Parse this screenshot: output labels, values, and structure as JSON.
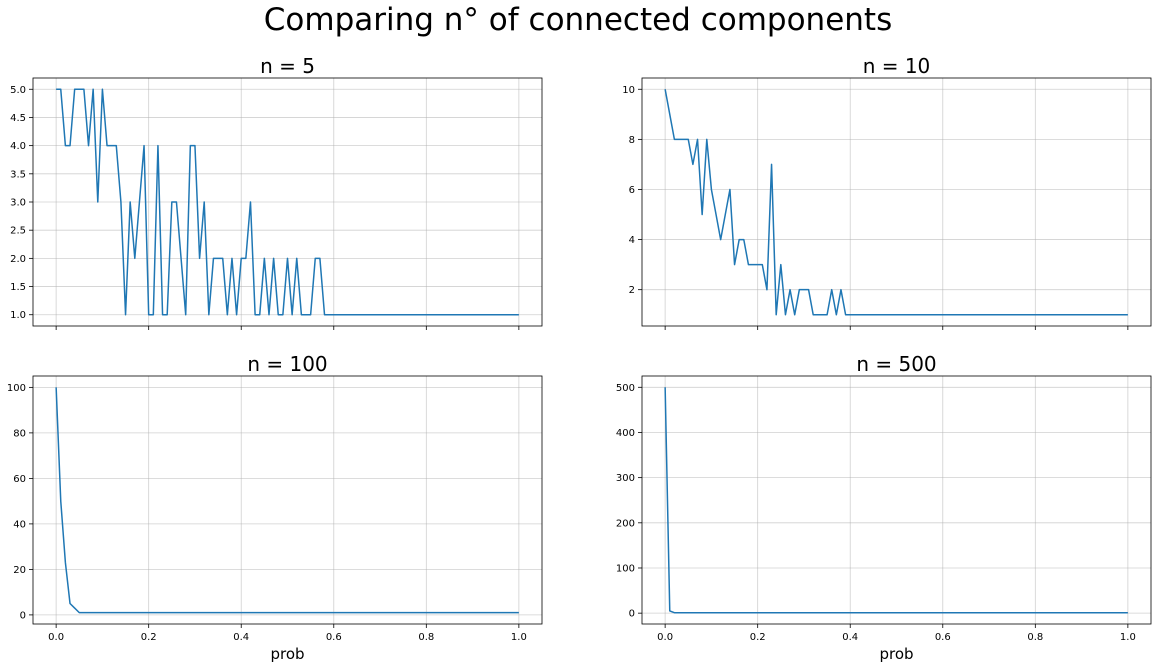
{
  "figure": {
    "title": "Comparing n° of connected components"
  },
  "colors": {
    "line": "#1f77b4"
  },
  "chart_data": [
    {
      "type": "line",
      "title": "n = 5",
      "xlabel": "",
      "ylabel": "",
      "grid": true,
      "xlim": [
        -0.05,
        1.05
      ],
      "ylim": [
        0.8,
        5.2
      ],
      "xticks": [
        0,
        0.2,
        0.4,
        0.6,
        0.8,
        1.0
      ],
      "xtick_labels": [],
      "yticks": [
        1.0,
        1.5,
        2.0,
        2.5,
        3.0,
        3.5,
        4.0,
        4.5,
        5.0
      ],
      "ytick_labels": [
        "1.0",
        "1.5",
        "2.0",
        "2.5",
        "3.0",
        "3.5",
        "4.0",
        "4.5",
        "5.0"
      ],
      "series": [
        {
          "x": [
            0.0,
            0.01,
            0.02,
            0.03,
            0.04,
            0.05,
            0.06,
            0.07,
            0.08,
            0.09,
            0.1,
            0.11,
            0.12,
            0.13,
            0.14,
            0.15,
            0.16,
            0.17,
            0.18,
            0.19,
            0.2,
            0.21,
            0.22,
            0.23,
            0.24,
            0.25,
            0.26,
            0.27,
            0.28,
            0.29,
            0.3,
            0.31,
            0.32,
            0.33,
            0.34,
            0.35,
            0.36,
            0.37,
            0.38,
            0.39,
            0.4,
            0.41,
            0.42,
            0.43,
            0.44,
            0.45,
            0.46,
            0.47,
            0.48,
            0.49,
            0.5,
            0.51,
            0.52,
            0.53,
            0.54,
            0.55,
            0.56,
            0.57,
            0.58,
            1.0
          ],
          "y": [
            5,
            5,
            4,
            4,
            5,
            5,
            5,
            4,
            5,
            3,
            5,
            4,
            4,
            4,
            3,
            1,
            3,
            2,
            3,
            4,
            1,
            1,
            4,
            1,
            1,
            3,
            3,
            2,
            1,
            4,
            4,
            2,
            3,
            1,
            2,
            2,
            2,
            1,
            2,
            1,
            2,
            2,
            3,
            1,
            1,
            2,
            1,
            2,
            1,
            1,
            2,
            1,
            2,
            1,
            1,
            1,
            2,
            2,
            1,
            1
          ]
        }
      ]
    },
    {
      "type": "line",
      "title": "n = 10",
      "xlabel": "",
      "ylabel": "",
      "grid": true,
      "xlim": [
        -0.05,
        1.05
      ],
      "ylim": [
        0.55,
        10.45
      ],
      "xticks": [
        0,
        0.2,
        0.4,
        0.6,
        0.8,
        1.0
      ],
      "xtick_labels": [],
      "yticks": [
        2,
        4,
        6,
        8,
        10
      ],
      "ytick_labels": [
        "2",
        "4",
        "6",
        "8",
        "10"
      ],
      "series": [
        {
          "x": [
            0.0,
            0.01,
            0.02,
            0.03,
            0.04,
            0.05,
            0.06,
            0.07,
            0.08,
            0.09,
            0.1,
            0.11,
            0.12,
            0.13,
            0.14,
            0.15,
            0.16,
            0.17,
            0.18,
            0.19,
            0.2,
            0.21,
            0.22,
            0.23,
            0.24,
            0.25,
            0.26,
            0.27,
            0.28,
            0.29,
            0.3,
            0.31,
            0.32,
            0.33,
            0.34,
            0.35,
            0.36,
            0.37,
            0.38,
            0.39,
            0.4,
            1.0
          ],
          "y": [
            10,
            9,
            8,
            8,
            8,
            8,
            7,
            8,
            5,
            8,
            6,
            5,
            4,
            5,
            6,
            3,
            4,
            4,
            3,
            3,
            3,
            3,
            2,
            7,
            1,
            3,
            1,
            2,
            1,
            2,
            2,
            2,
            1,
            1,
            1,
            1,
            2,
            1,
            2,
            1,
            1,
            1
          ]
        }
      ]
    },
    {
      "type": "line",
      "title": "n = 100",
      "xlabel": "prob",
      "ylabel": "",
      "grid": true,
      "xlim": [
        -0.05,
        1.05
      ],
      "ylim": [
        -4,
        105
      ],
      "xticks": [
        0,
        0.2,
        0.4,
        0.6,
        0.8,
        1.0
      ],
      "xtick_labels": [
        "0.0",
        "0.2",
        "0.4",
        "0.6",
        "0.8",
        "1.0"
      ],
      "yticks": [
        0,
        20,
        40,
        60,
        80,
        100
      ],
      "ytick_labels": [
        "0",
        "20",
        "40",
        "60",
        "80",
        "100"
      ],
      "series": [
        {
          "x": [
            0.0,
            0.01,
            0.02,
            0.03,
            0.04,
            0.05,
            0.06,
            1.0
          ],
          "y": [
            100,
            50,
            23,
            5,
            3,
            1,
            1,
            1
          ]
        }
      ]
    },
    {
      "type": "line",
      "title": "n = 500",
      "xlabel": "prob",
      "ylabel": "",
      "grid": true,
      "xlim": [
        -0.05,
        1.05
      ],
      "ylim": [
        -24,
        525
      ],
      "xticks": [
        0,
        0.2,
        0.4,
        0.6,
        0.8,
        1.0
      ],
      "xtick_labels": [
        "0.0",
        "0.2",
        "0.4",
        "0.6",
        "0.8",
        "1.0"
      ],
      "yticks": [
        0,
        100,
        200,
        300,
        400,
        500
      ],
      "ytick_labels": [
        "0",
        "100",
        "200",
        "300",
        "400",
        "500"
      ],
      "series": [
        {
          "x": [
            0.0,
            0.01,
            0.02,
            0.03,
            1.0
          ],
          "y": [
            500,
            5,
            1,
            1,
            1
          ]
        }
      ]
    }
  ]
}
